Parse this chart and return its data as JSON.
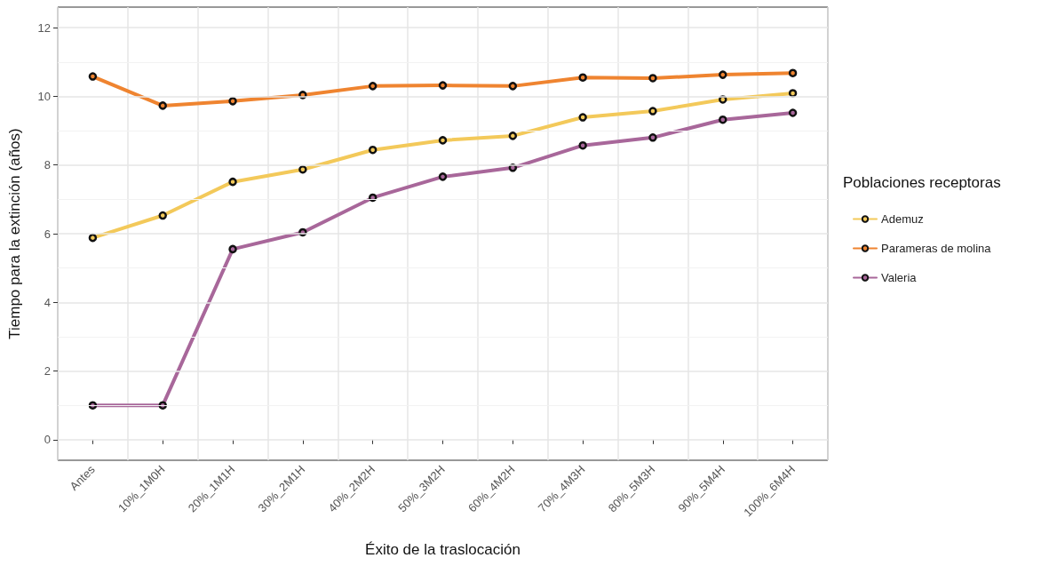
{
  "chart_data": {
    "type": "line",
    "xlabel": "Éxito de la traslocación",
    "ylabel": "Tiempo para la extinción (años)",
    "legend_title": "Poblaciones receptoras",
    "categories": [
      "Antes",
      "10%_1M0H",
      "20%_1M1H",
      "30%_2M1H",
      "40%_2M2H",
      "50%_3M2H",
      "60%_4M2H",
      "70%_4M3H",
      "80%_5M3H",
      "90%_5M4H",
      "100%_6M4H"
    ],
    "series": [
      {
        "name": "Ademuz",
        "color": "#f3c95a",
        "values": [
          5.88,
          6.53,
          7.51,
          7.87,
          8.44,
          8.72,
          8.85,
          9.39,
          9.57,
          9.91,
          10.09
        ]
      },
      {
        "name": "Parameras de molina",
        "color": "#ef8430",
        "values": [
          10.58,
          9.73,
          9.86,
          10.04,
          10.3,
          10.32,
          10.3,
          10.55,
          10.53,
          10.63,
          10.68
        ]
      },
      {
        "name": "Valeria",
        "color": "#a8679a",
        "values": [
          1.0,
          1.0,
          5.55,
          6.04,
          7.05,
          7.66,
          7.92,
          8.57,
          8.8,
          9.32,
          9.52
        ]
      }
    ],
    "ylim": [
      -0.6,
      12.6
    ],
    "yticks": [
      0,
      2,
      4,
      6,
      8,
      10,
      12
    ],
    "grid": true,
    "legend": "right",
    "marker": "circle",
    "line_style": "solid"
  }
}
